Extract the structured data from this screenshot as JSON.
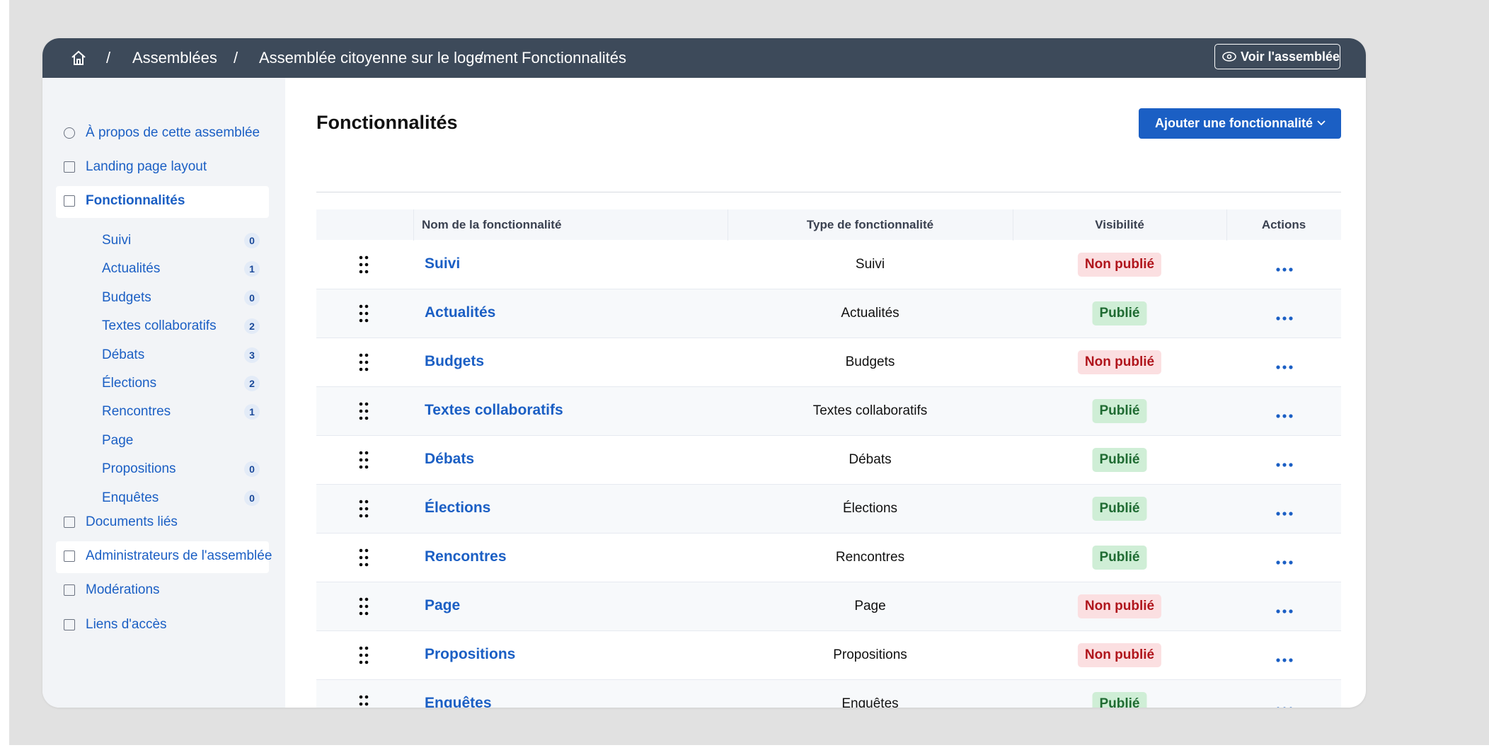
{
  "header": {
    "breadcrumbs": [
      "Assemblées",
      "Assemblée citoyenne sur le logement",
      "Fonctionnalités"
    ],
    "view_button": "Voir l'assemblée"
  },
  "sidebar": {
    "items": [
      {
        "label": "À propos de cette assemblée"
      },
      {
        "label": "Landing page layout"
      },
      {
        "label": "Fonctionnalités",
        "active": true,
        "subitems": [
          {
            "label": "Suivi",
            "count": 0
          },
          {
            "label": "Actualités",
            "count": 1
          },
          {
            "label": "Budgets",
            "count": 0
          },
          {
            "label": "Textes collaboratifs",
            "count": 2
          },
          {
            "label": "Débats",
            "count": 3
          },
          {
            "label": "Élections",
            "count": 2
          },
          {
            "label": "Rencontres",
            "count": 1
          },
          {
            "label": "Page"
          },
          {
            "label": "Propositions",
            "count": 0
          },
          {
            "label": "Enquêtes",
            "count": 0
          }
        ]
      },
      {
        "label": "Documents liés"
      },
      {
        "label": "Administrateurs de l'assemblée",
        "highlight": true
      },
      {
        "label": "Modérations"
      },
      {
        "label": "Liens d'accès"
      }
    ]
  },
  "main": {
    "title": "Fonctionnalités",
    "add_button": "Ajouter une fonctionnalité",
    "table": {
      "columns": [
        "Nom de la fonctionnalité",
        "Type de fonctionnalité",
        "Visibilité",
        "Actions"
      ],
      "rows": [
        {
          "name": "Suivi",
          "type": "Suivi",
          "visibility": "Non publié",
          "tone": "danger"
        },
        {
          "name": "Actualités",
          "type": "Actualités",
          "visibility": "Publié",
          "tone": "success"
        },
        {
          "name": "Budgets",
          "type": "Budgets",
          "visibility": "Non publié",
          "tone": "danger"
        },
        {
          "name": "Textes collaboratifs",
          "type": "Textes collaboratifs",
          "visibility": "Publié",
          "tone": "success"
        },
        {
          "name": "Débats",
          "type": "Débats",
          "visibility": "Publié",
          "tone": "success"
        },
        {
          "name": "Élections",
          "type": "Élections",
          "visibility": "Publié",
          "tone": "success"
        },
        {
          "name": "Rencontres",
          "type": "Rencontres",
          "visibility": "Publié",
          "tone": "success"
        },
        {
          "name": "Page",
          "type": "Page",
          "visibility": "Non publié",
          "tone": "danger"
        },
        {
          "name": "Propositions",
          "type": "Propositions",
          "visibility": "Non publié",
          "tone": "danger"
        },
        {
          "name": "Enquêtes",
          "type": "Enquêtes",
          "visibility": "Publié",
          "tone": "success"
        }
      ]
    }
  }
}
